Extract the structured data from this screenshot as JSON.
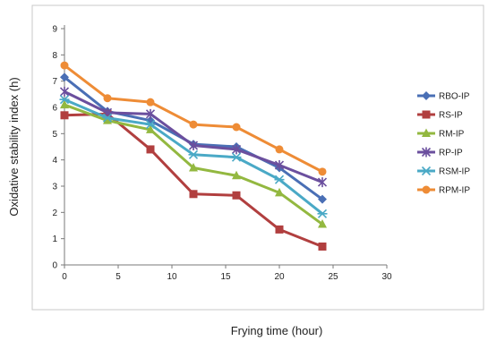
{
  "chart_data": {
    "type": "line",
    "xlabel": "Frying time (hour)",
    "ylabel": "Oxidative stability index (h)",
    "xlim": [
      0,
      30
    ],
    "ylim": [
      0,
      9
    ],
    "x_ticks": [
      "0",
      "5",
      "10",
      "15",
      "20",
      "25",
      "30"
    ],
    "y_ticks": [
      "0",
      "1",
      "2",
      "3",
      "4",
      "5",
      "6",
      "7",
      "8",
      "9"
    ],
    "grid": false,
    "legend_position": "right",
    "x": [
      0,
      4,
      8,
      12,
      16,
      20,
      24
    ],
    "series": [
      {
        "name": "RBO-IP",
        "color": "#4a6fb5",
        "marker": "diamond",
        "values": [
          7.15,
          5.85,
          5.5,
          4.6,
          4.5,
          3.7,
          2.5
        ]
      },
      {
        "name": "RS-IP",
        "color": "#b13f3f",
        "marker": "square",
        "values": [
          5.7,
          5.75,
          4.4,
          2.7,
          2.65,
          1.35,
          0.7
        ]
      },
      {
        "name": "RM-IP",
        "color": "#93b840",
        "marker": "triangle",
        "values": [
          6.1,
          5.5,
          5.15,
          3.7,
          3.4,
          2.75,
          1.55
        ]
      },
      {
        "name": "RP-IP",
        "color": "#6b4f9e",
        "marker": "star",
        "values": [
          6.6,
          5.8,
          5.75,
          4.55,
          4.4,
          3.8,
          3.15
        ]
      },
      {
        "name": "RSM-IP",
        "color": "#4aa9c6",
        "marker": "asterisk",
        "values": [
          6.3,
          5.6,
          5.35,
          4.2,
          4.1,
          3.25,
          1.95
        ]
      },
      {
        "name": "RPM-IP",
        "color": "#ee8c36",
        "marker": "circle",
        "values": [
          7.6,
          6.35,
          6.2,
          5.35,
          5.25,
          4.4,
          3.55
        ]
      }
    ]
  }
}
